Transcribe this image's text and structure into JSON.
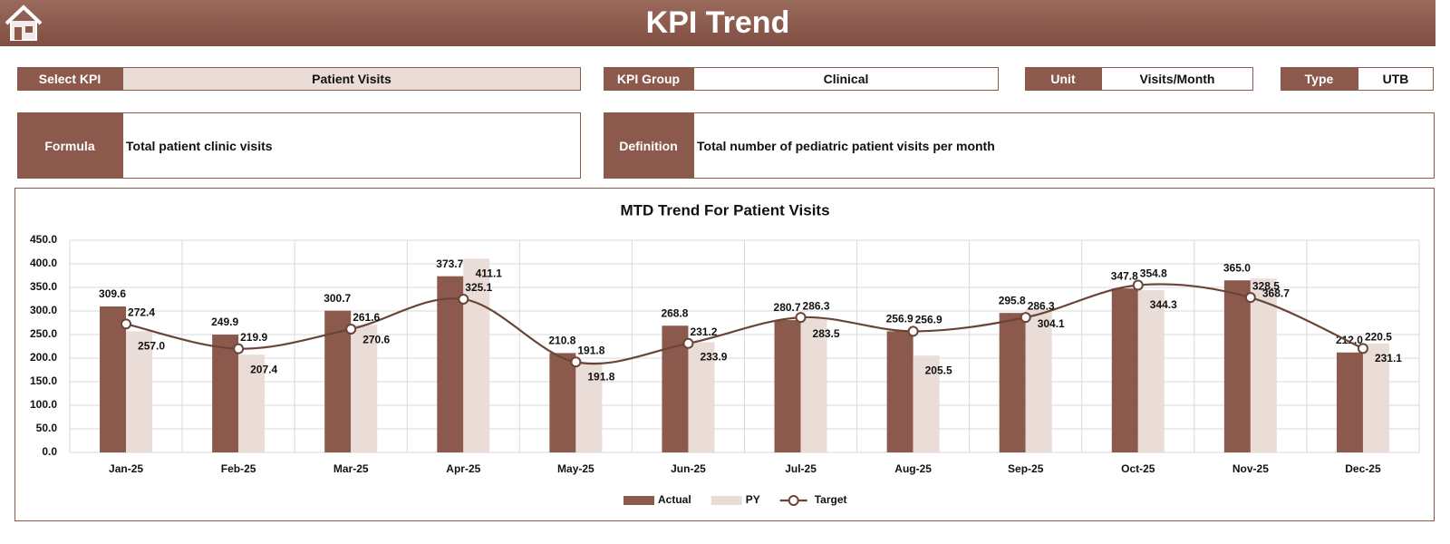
{
  "header": {
    "title": "KPI Trend"
  },
  "kpi_fields": [
    {
      "label": "Select KPI",
      "value": "Patient Visits"
    },
    {
      "label": "KPI Group",
      "value": "Clinical"
    },
    {
      "label": "Unit",
      "value": "Visits/Month"
    },
    {
      "label": "Type",
      "value": "UTB"
    }
  ],
  "info_fields": [
    {
      "label": "Formula",
      "value": "Total patient clinic visits"
    },
    {
      "label": "Definition",
      "value": "Total number of pediatric patient visits per month"
    }
  ],
  "chart_data": {
    "type": "bar",
    "title": "MTD Trend For Patient Visits",
    "categories": [
      "Jan-25",
      "Feb-25",
      "Mar-25",
      "Apr-25",
      "May-25",
      "Jun-25",
      "Jul-25",
      "Aug-25",
      "Sep-25",
      "Oct-25",
      "Nov-25",
      "Dec-25"
    ],
    "series": [
      {
        "name": "Actual",
        "type": "bar",
        "color": "#8b5a4c",
        "values": [
          309.6,
          249.9,
          300.7,
          373.7,
          210.8,
          268.8,
          280.7,
          256.9,
          295.8,
          347.8,
          365,
          212
        ],
        "value_labels": [
          "309.6",
          "249.9",
          "300.7",
          "373.7",
          "210.8",
          "268.8",
          "280.7",
          "256.9",
          "295.8",
          "347.8",
          "365.0",
          "212.0"
        ]
      },
      {
        "name": "PY",
        "type": "bar",
        "color": "#eaddd8",
        "values": [
          257,
          207.4,
          270.6,
          411.1,
          191.8,
          233.9,
          283.5,
          205.5,
          304.1,
          344.3,
          368.7,
          231.1
        ],
        "value_labels": [
          "257.0",
          "207.4",
          "270.6",
          "411.1",
          "191.8",
          "233.9",
          "283.5",
          "205.5",
          "304.1",
          "344.3",
          "368.7",
          "231.1"
        ]
      },
      {
        "name": "Target",
        "type": "line",
        "color": "#6b4438",
        "values": [
          272.4,
          219.9,
          261.6,
          325.1,
          191.8,
          231.2,
          286.3,
          256.9,
          286.3,
          354.8,
          328.5,
          220.5
        ],
        "value_labels": [
          "272.4",
          "219.9",
          "261.6",
          "325.1",
          "191.8",
          "231.2",
          "286.3",
          "256.9",
          "286.3",
          "354.8",
          "328.5",
          "220.5"
        ]
      }
    ],
    "ylim": [
      0,
      450
    ],
    "yticks": [
      {
        "value": 0,
        "label": "0.0"
      },
      {
        "value": 50,
        "label": "50.0"
      },
      {
        "value": 100,
        "label": "100.0"
      },
      {
        "value": 150,
        "label": "150.0"
      },
      {
        "value": 200,
        "label": "200.0"
      },
      {
        "value": 250,
        "label": "250.0"
      },
      {
        "value": 300,
        "label": "300.0"
      },
      {
        "value": 350,
        "label": "350.0"
      },
      {
        "value": 400,
        "label": "400.0"
      },
      {
        "value": 450,
        "label": "450.0"
      }
    ],
    "grid": true,
    "legend": "bottom"
  }
}
